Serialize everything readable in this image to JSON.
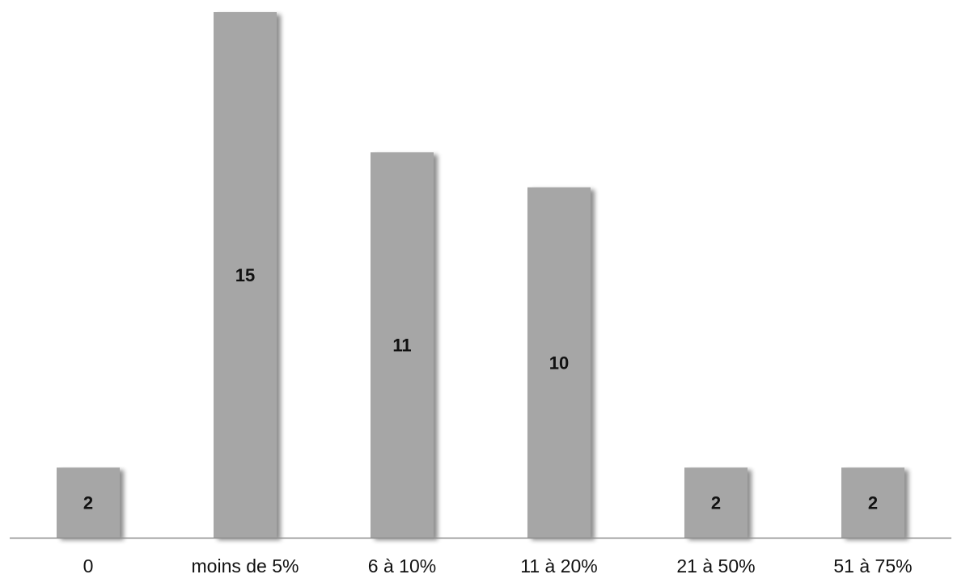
{
  "chart_data": {
    "type": "bar",
    "title": "",
    "xlabel": "",
    "ylabel": "",
    "categories": [
      "0",
      "moins de 5%",
      "6 à 10%",
      "11 à 20%",
      "21 à 50%",
      "51 à 75%"
    ],
    "values": [
      2,
      15,
      11,
      10,
      2,
      2
    ],
    "data_labels": [
      "2",
      "15",
      "11",
      "10",
      "2",
      "2"
    ],
    "ylim": [
      0,
      15
    ],
    "grid": false,
    "legend": "none",
    "colors": {
      "bar": "#a6a6a6",
      "shadow": "#7f7f7f",
      "axis": "#8c8c8c",
      "text": "#111111"
    }
  }
}
